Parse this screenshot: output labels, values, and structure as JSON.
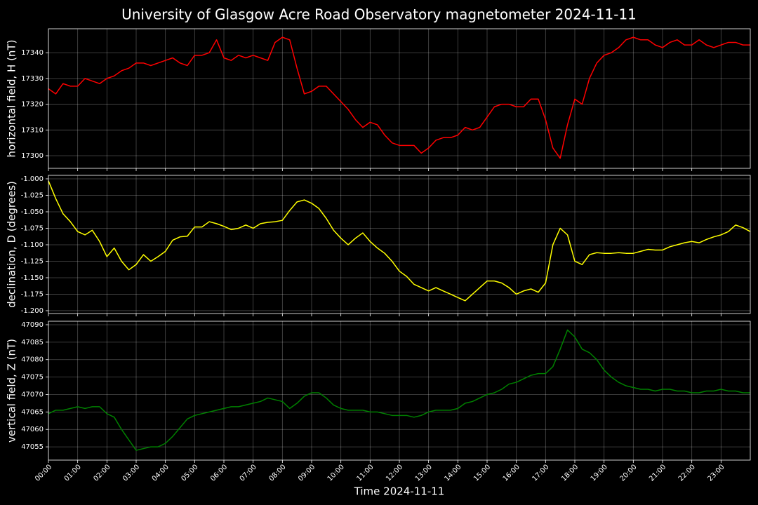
{
  "chart_data": [
    {
      "type": "line",
      "title": "University of Glasgow Acre Road Observatory magnetometer 2024-11-11",
      "ylabel": "horizontal field, H (nT)",
      "color": "#ff0000",
      "grid": true,
      "x": [
        0,
        0.25,
        0.5,
        0.75,
        1,
        1.25,
        1.5,
        1.75,
        2,
        2.25,
        2.5,
        2.75,
        3,
        3.25,
        3.5,
        3.75,
        4,
        4.25,
        4.5,
        4.75,
        5,
        5.25,
        5.5,
        5.75,
        6,
        6.25,
        6.5,
        6.75,
        7,
        7.25,
        7.5,
        7.75,
        8,
        8.25,
        8.5,
        8.75,
        9,
        9.25,
        9.5,
        9.75,
        10,
        10.25,
        10.5,
        10.75,
        11,
        11.25,
        11.5,
        11.75,
        12,
        12.25,
        12.5,
        12.75,
        13,
        13.25,
        13.5,
        13.75,
        14,
        14.25,
        14.5,
        14.75,
        15,
        15.25,
        15.5,
        15.75,
        16,
        16.25,
        16.5,
        16.75,
        17,
        17.25,
        17.5,
        17.75,
        18,
        18.25,
        18.5,
        18.75,
        19,
        19.25,
        19.5,
        19.75,
        20,
        20.25,
        20.5,
        20.75,
        21,
        21.25,
        21.5,
        21.75,
        22,
        22.25,
        22.5,
        22.75,
        23,
        23.25,
        23.5,
        23.75,
        24
      ],
      "values": [
        17326,
        17324,
        17328,
        17327,
        17327,
        17330,
        17329,
        17328,
        17330,
        17331,
        17333,
        17334,
        17336,
        17336,
        17335,
        17336,
        17337,
        17338,
        17336,
        17335,
        17339,
        17339,
        17340,
        17345,
        17338,
        17337,
        17339,
        17338,
        17339,
        17338,
        17337,
        17344,
        17346,
        17345,
        17334,
        17324,
        17325,
        17327,
        17327,
        17324,
        17321,
        17318,
        17314,
        17311,
        17313,
        17312,
        17308,
        17305,
        17304,
        17304,
        17304,
        17301,
        17303,
        17306,
        17307,
        17307,
        17308,
        17311,
        17310,
        17311,
        17315,
        17319,
        17320,
        17320,
        17319,
        17319,
        17322,
        17322,
        17314,
        17303,
        17299,
        17312,
        17322,
        17320,
        17330,
        17336,
        17339,
        17340,
        17342,
        17345,
        17346,
        17345,
        17345,
        17343,
        17342,
        17344,
        17345,
        17343,
        17343,
        17345,
        17343,
        17342,
        17343,
        17344,
        17344,
        17343,
        17343
      ],
      "xlim": [
        0,
        24
      ],
      "ylim": [
        17295.1,
        17349.3
      ],
      "yticks": [
        17300,
        17310,
        17320,
        17330,
        17340
      ]
    },
    {
      "type": "line",
      "ylabel": "declination, D (degrees)",
      "color": "#ffff00",
      "grid": true,
      "x": [
        0,
        0.25,
        0.5,
        0.75,
        1,
        1.25,
        1.5,
        1.75,
        2,
        2.25,
        2.5,
        2.75,
        3,
        3.25,
        3.5,
        3.75,
        4,
        4.25,
        4.5,
        4.75,
        5,
        5.25,
        5.5,
        5.75,
        6,
        6.25,
        6.5,
        6.75,
        7,
        7.25,
        7.5,
        7.75,
        8,
        8.25,
        8.5,
        8.75,
        9,
        9.25,
        9.5,
        9.75,
        10,
        10.25,
        10.5,
        10.75,
        11,
        11.25,
        11.5,
        11.75,
        12,
        12.25,
        12.5,
        12.75,
        13,
        13.25,
        13.5,
        13.75,
        14,
        14.25,
        14.5,
        14.75,
        15,
        15.25,
        15.5,
        15.75,
        16,
        16.25,
        16.5,
        16.75,
        17,
        17.25,
        17.5,
        17.75,
        18,
        18.25,
        18.5,
        18.75,
        19,
        19.25,
        19.5,
        19.75,
        20,
        20.25,
        20.5,
        20.75,
        21,
        21.25,
        21.5,
        21.75,
        22,
        22.25,
        22.5,
        22.75,
        23,
        23.25,
        23.5,
        23.75,
        24
      ],
      "values": [
        -1.003,
        -1.03,
        -1.053,
        -1.065,
        -1.08,
        -1.085,
        -1.078,
        -1.095,
        -1.118,
        -1.105,
        -1.125,
        -1.138,
        -1.13,
        -1.115,
        -1.125,
        -1.118,
        -1.11,
        -1.093,
        -1.088,
        -1.087,
        -1.073,
        -1.073,
        -1.065,
        -1.068,
        -1.072,
        -1.077,
        -1.075,
        -1.07,
        -1.075,
        -1.068,
        -1.066,
        -1.065,
        -1.063,
        -1.048,
        -1.035,
        -1.032,
        -1.037,
        -1.045,
        -1.06,
        -1.078,
        -1.09,
        -1.1,
        -1.09,
        -1.082,
        -1.095,
        -1.105,
        -1.113,
        -1.125,
        -1.14,
        -1.148,
        -1.16,
        -1.165,
        -1.17,
        -1.165,
        -1.17,
        -1.175,
        -1.18,
        -1.185,
        -1.175,
        -1.165,
        -1.155,
        -1.155,
        -1.158,
        -1.165,
        -1.175,
        -1.17,
        -1.167,
        -1.172,
        -1.158,
        -1.1,
        -1.075,
        -1.085,
        -1.125,
        -1.13,
        -1.115,
        -1.112,
        -1.113,
        -1.113,
        -1.112,
        -1.113,
        -1.113,
        -1.11,
        -1.107,
        -1.108,
        -1.108,
        -1.103,
        -1.1,
        -1.097,
        -1.095,
        -1.097,
        -1.092,
        -1.088,
        -1.085,
        -1.08,
        -1.07,
        -1.074,
        -1.08
      ],
      "xlim": [
        0,
        24
      ],
      "ylim": [
        -1.2043,
        -0.9947
      ],
      "yticks": [
        {
          "value": -1.2,
          "label": "-1.200"
        },
        -1.175,
        {
          "value": -1.15,
          "label": "-1.150"
        },
        -1.125,
        {
          "value": -1.1,
          "label": "-1.100"
        },
        -1.075,
        {
          "value": -1.05,
          "label": "-1.050"
        },
        -1.025,
        {
          "value": -1,
          "label": "-1.000"
        }
      ]
    },
    {
      "type": "line",
      "ylabel": "vertical field, Z (nT)",
      "xlabel": "Time 2024-11-11",
      "color": "#008000",
      "grid": true,
      "x": [
        0,
        0.25,
        0.5,
        0.75,
        1,
        1.25,
        1.5,
        1.75,
        2,
        2.25,
        2.5,
        2.75,
        3,
        3.25,
        3.5,
        3.75,
        4,
        4.25,
        4.5,
        4.75,
        5,
        5.25,
        5.5,
        5.75,
        6,
        6.25,
        6.5,
        6.75,
        7,
        7.25,
        7.5,
        7.75,
        8,
        8.25,
        8.5,
        8.75,
        9,
        9.25,
        9.5,
        9.75,
        10,
        10.25,
        10.5,
        10.75,
        11,
        11.25,
        11.5,
        11.75,
        12,
        12.25,
        12.5,
        12.75,
        13,
        13.25,
        13.5,
        13.75,
        14,
        14.25,
        14.5,
        14.75,
        15,
        15.25,
        15.5,
        15.75,
        16,
        16.25,
        16.5,
        16.75,
        17,
        17.25,
        17.5,
        17.75,
        18,
        18.25,
        18.5,
        18.75,
        19,
        19.25,
        19.5,
        19.75,
        20,
        20.25,
        20.5,
        20.75,
        21,
        21.25,
        21.5,
        21.75,
        22,
        22.25,
        22.5,
        22.75,
        23,
        23.25,
        23.5,
        23.75,
        24
      ],
      "values": [
        47064.5,
        47065.5,
        47065.5,
        47066,
        47066.5,
        47066,
        47066.5,
        47066.5,
        47064.5,
        47063.5,
        47060,
        47057,
        47054,
        47054.5,
        47055,
        47055,
        47056,
        47058,
        47060.5,
        47063,
        47064,
        47064.5,
        47065,
        47065.5,
        47066,
        47066.5,
        47066.5,
        47067,
        47067.5,
        47068,
        47069,
        47068.5,
        47068,
        47066,
        47067.5,
        47069.5,
        47070.5,
        47070.5,
        47069,
        47067,
        47066,
        47065.5,
        47065.5,
        47065.5,
        47065,
        47065,
        47064.5,
        47064,
        47064,
        47064,
        47063.5,
        47064,
        47065,
        47065.5,
        47065.5,
        47065.5,
        47066,
        47067.5,
        47068,
        47069,
        47070,
        47070.5,
        47071.5,
        47073,
        47073.5,
        47074.5,
        47075.5,
        47076,
        47076,
        47078,
        47083,
        47088.5,
        47086.5,
        47083,
        47082,
        47080,
        47077,
        47075,
        47073.5,
        47072.5,
        47072,
        47071.5,
        47071.5,
        47071,
        47071.5,
        47071.5,
        47071,
        47071,
        47070.5,
        47070.5,
        47071,
        47071,
        47071.5,
        47071,
        47071,
        47070.5,
        47070.5
      ],
      "xlim": [
        0,
        24
      ],
      "ylim": [
        47051.2,
        47091.0
      ],
      "yticks": [
        47055,
        47060,
        47065,
        47070,
        47075,
        47080,
        47085,
        47090
      ],
      "xticks": [
        {
          "value": 0,
          "label": "00:00"
        },
        {
          "value": 1,
          "label": "01:00"
        },
        {
          "value": 2,
          "label": "02:00"
        },
        {
          "value": 3,
          "label": "03:00"
        },
        {
          "value": 4,
          "label": "04:00"
        },
        {
          "value": 5,
          "label": "05:00"
        },
        {
          "value": 6,
          "label": "06:00"
        },
        {
          "value": 7,
          "label": "07:00"
        },
        {
          "value": 8,
          "label": "08:00"
        },
        {
          "value": 9,
          "label": "09:00"
        },
        {
          "value": 10,
          "label": "10:00"
        },
        {
          "value": 11,
          "label": "11:00"
        },
        {
          "value": 12,
          "label": "12:00"
        },
        {
          "value": 13,
          "label": "13:00"
        },
        {
          "value": 14,
          "label": "14:00"
        },
        {
          "value": 15,
          "label": "15:00"
        },
        {
          "value": 16,
          "label": "16:00"
        },
        {
          "value": 17,
          "label": "17:00"
        },
        {
          "value": 18,
          "label": "18:00"
        },
        {
          "value": 19,
          "label": "19:00"
        },
        {
          "value": 20,
          "label": "20:00"
        },
        {
          "value": 21,
          "label": "21:00"
        },
        {
          "value": 22,
          "label": "22:00"
        },
        {
          "value": 23,
          "label": "23:00"
        }
      ]
    }
  ]
}
